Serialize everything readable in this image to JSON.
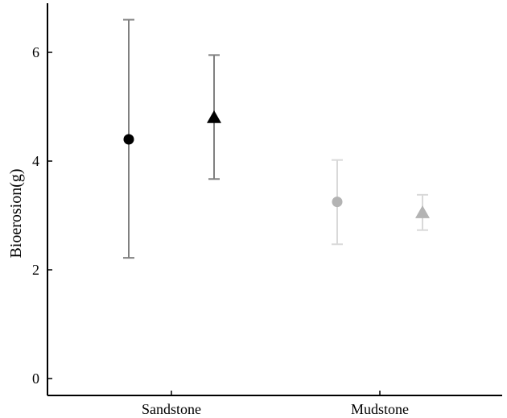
{
  "chart_data": {
    "type": "scatter",
    "xlabel": "",
    "ylabel": "Bioerosion(g)",
    "ylim": [
      -0.3,
      6.9
    ],
    "yticks": [
      "0",
      "2",
      "4",
      "6"
    ],
    "categories": [
      "Sandstone",
      "Mudstone"
    ],
    "grid": false,
    "points": [
      {
        "category": "Sandstone",
        "offset": -1,
        "marker": "circle",
        "color": "#000000",
        "bar_color": "#808080",
        "value": 4.4,
        "low": 2.22,
        "high": 6.6
      },
      {
        "category": "Sandstone",
        "offset": 1,
        "marker": "triangle",
        "color": "#000000",
        "bar_color": "#808080",
        "value": 4.8,
        "low": 3.67,
        "high": 5.95
      },
      {
        "category": "Mudstone",
        "offset": -1,
        "marker": "circle",
        "color": "#b3b3b3",
        "bar_color": "#d9d9d9",
        "value": 3.25,
        "low": 2.47,
        "high": 4.02
      },
      {
        "category": "Mudstone",
        "offset": 1,
        "marker": "triangle",
        "color": "#b3b3b3",
        "bar_color": "#d9d9d9",
        "value": 3.05,
        "low": 2.73,
        "high": 3.38
      }
    ]
  }
}
